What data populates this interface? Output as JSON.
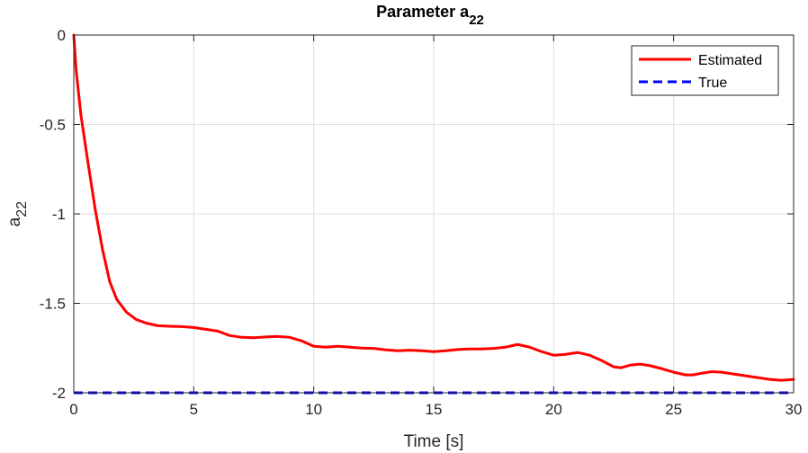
{
  "chart_data": {
    "type": "line",
    "title": "Parameter a",
    "title_subscript": "22",
    "xlabel": "Time [s]",
    "ylabel": "a",
    "ylabel_subscript": "22",
    "xlim": [
      0,
      30
    ],
    "ylim": [
      -2,
      0
    ],
    "xticks": [
      0,
      5,
      10,
      15,
      20,
      25,
      30
    ],
    "xtick_labels": [
      "0",
      "5",
      "10",
      "15",
      "20",
      "25",
      "30"
    ],
    "yticks": [
      0,
      -0.5,
      -1,
      -1.5,
      -2
    ],
    "ytick_labels": [
      "0",
      "-0.5",
      "-1",
      "-1.5",
      "-2"
    ],
    "grid": true,
    "legend_position": "top-right",
    "series": [
      {
        "name": "Estimated",
        "color": "#ff0000",
        "style": "solid",
        "x": [
          0,
          0.1,
          0.3,
          0.6,
          0.9,
          1.2,
          1.5,
          1.8,
          2.2,
          2.6,
          3.0,
          3.5,
          4.0,
          4.5,
          5.0,
          6.0,
          6.5,
          7.0,
          7.5,
          8.0,
          8.5,
          9.0,
          9.5,
          10.0,
          10.5,
          11.0,
          11.5,
          12.0,
          12.5,
          13.0,
          13.5,
          14.0,
          14.5,
          15.0,
          15.5,
          16.0,
          16.5,
          17.0,
          17.5,
          18.0,
          18.5,
          19.0,
          19.5,
          20.0,
          20.5,
          21.0,
          21.5,
          22.0,
          22.5,
          22.8,
          23.2,
          23.6,
          24.0,
          24.5,
          25.0,
          25.5,
          25.8,
          26.2,
          26.6,
          27.0,
          27.5,
          28.0,
          28.5,
          29.0,
          29.5,
          30.0
        ],
        "values": [
          0,
          -0.2,
          -0.45,
          -0.72,
          -0.98,
          -1.2,
          -1.38,
          -1.48,
          -1.55,
          -1.59,
          -1.61,
          -1.625,
          -1.628,
          -1.63,
          -1.635,
          -1.655,
          -1.68,
          -1.69,
          -1.692,
          -1.688,
          -1.685,
          -1.69,
          -1.71,
          -1.74,
          -1.745,
          -1.74,
          -1.745,
          -1.75,
          -1.752,
          -1.76,
          -1.765,
          -1.762,
          -1.765,
          -1.77,
          -1.765,
          -1.758,
          -1.755,
          -1.755,
          -1.752,
          -1.745,
          -1.73,
          -1.745,
          -1.77,
          -1.79,
          -1.785,
          -1.775,
          -1.79,
          -1.82,
          -1.855,
          -1.86,
          -1.845,
          -1.84,
          -1.848,
          -1.865,
          -1.885,
          -1.9,
          -1.9,
          -1.89,
          -1.882,
          -1.885,
          -1.895,
          -1.905,
          -1.915,
          -1.925,
          -1.93,
          -1.925
        ]
      },
      {
        "name": "True",
        "color": "#0000ff",
        "style": "dashed",
        "x": [
          0,
          30
        ],
        "values": [
          -2,
          -2
        ]
      }
    ]
  }
}
